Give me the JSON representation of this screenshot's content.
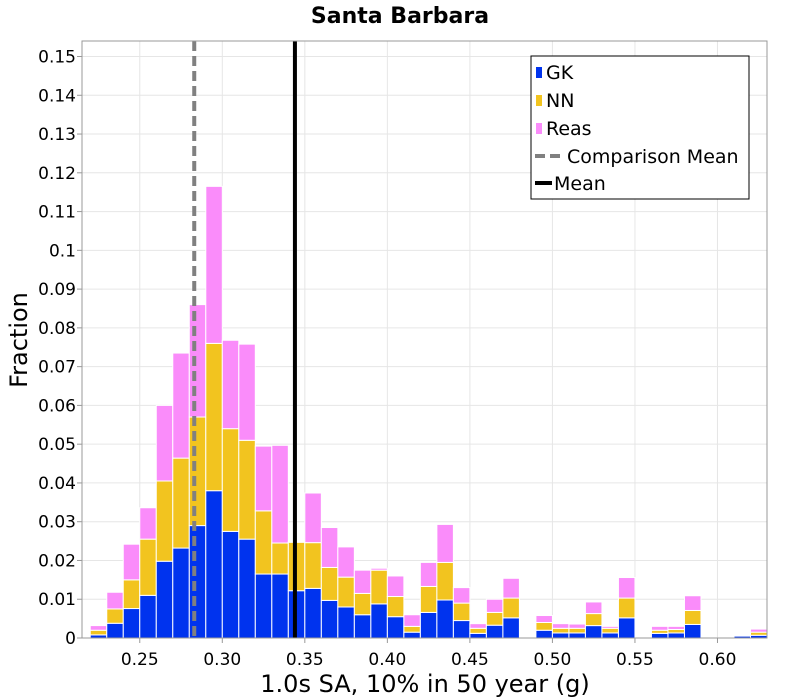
{
  "chart_data": {
    "type": "bar",
    "stacked": true,
    "title": "Santa Barbara",
    "xlabel": "1.0s SA, 10% in 50 year (g)",
    "ylabel": "Fraction",
    "xlim": [
      0.215,
      0.63
    ],
    "ylim": [
      0,
      0.154
    ],
    "bin_width": 0.01,
    "x_ticks": [
      0.25,
      0.3,
      0.35,
      0.4,
      0.45,
      0.5,
      0.55,
      0.6
    ],
    "x_tick_labels": [
      "0.25",
      "0.30",
      "0.35",
      "0.40",
      "0.45",
      "0.50",
      "0.55",
      "0.60"
    ],
    "y_ticks": [
      0,
      0.01,
      0.02,
      0.03,
      0.04,
      0.05,
      0.06,
      0.07,
      0.08,
      0.09,
      0.1,
      0.11,
      0.12,
      0.13,
      0.14,
      0.15
    ],
    "y_tick_labels": [
      "0",
      "0.01",
      "0.02",
      "0.03",
      "0.04",
      "0.05",
      "0.06",
      "0.07",
      "0.08",
      "0.09",
      "0.1",
      "0.11",
      "0.12",
      "0.13",
      "0.14",
      "0.15"
    ],
    "grid": true,
    "legend_position": "top-right",
    "x": [
      0.225,
      0.235,
      0.245,
      0.255,
      0.265,
      0.275,
      0.285,
      0.295,
      0.305,
      0.315,
      0.325,
      0.335,
      0.345,
      0.355,
      0.365,
      0.375,
      0.385,
      0.395,
      0.405,
      0.415,
      0.425,
      0.435,
      0.445,
      0.455,
      0.465,
      0.475,
      0.485,
      0.495,
      0.505,
      0.515,
      0.525,
      0.535,
      0.545,
      0.555,
      0.565,
      0.575,
      0.585,
      0.595,
      0.605,
      0.615,
      0.625
    ],
    "series": [
      {
        "name": "GK",
        "color": "#0033ee",
        "values": [
          0.0008,
          0.0038,
          0.0076,
          0.011,
          0.0198,
          0.0232,
          0.029,
          0.038,
          0.0275,
          0.0255,
          0.0165,
          0.0165,
          0.0122,
          0.0128,
          0.0097,
          0.008,
          0.006,
          0.0088,
          0.0055,
          0.0015,
          0.0066,
          0.0098,
          0.0045,
          0.0012,
          0.0033,
          0.0052,
          0,
          0.002,
          0.0013,
          0.0013,
          0.0032,
          0.0013,
          0.0052,
          0,
          0.0012,
          0.0013,
          0.0035,
          0,
          0,
          0.0005,
          0.0007
        ]
      },
      {
        "name": "NN",
        "color": "#f2c41f",
        "values": [
          0.0012,
          0.0037,
          0.0074,
          0.0145,
          0.0207,
          0.0232,
          0.028,
          0.038,
          0.0265,
          0.0255,
          0.0163,
          0.008,
          0.0125,
          0.0118,
          0.0085,
          0.0077,
          0.0055,
          0.0087,
          0.0052,
          0.0015,
          0.0067,
          0.0097,
          0.0045,
          0.0013,
          0.0033,
          0.0051,
          0,
          0.002,
          0.0012,
          0.0012,
          0.0031,
          0.0012,
          0.0051,
          0,
          0.0008,
          0.0009,
          0.0036,
          0,
          0,
          0.0001,
          0.0008
        ]
      },
      {
        "name": "Reas",
        "color": "#fa8cfa",
        "values": [
          0.0012,
          0.0043,
          0.0092,
          0.0081,
          0.0195,
          0.0271,
          0.029,
          0.0405,
          0.0228,
          0.0248,
          0.0167,
          0.0252,
          0.0001,
          0.0128,
          0.0103,
          0.0078,
          0.006,
          0.0005,
          0.0053,
          0.003,
          0.0062,
          0.0098,
          0.004,
          0.0012,
          0.0034,
          0.0051,
          0,
          0.0018,
          0.0012,
          0.0011,
          0.003,
          0.0005,
          0.0053,
          0,
          0.001,
          0.0008,
          0.0038,
          0,
          0,
          0.0001,
          0.0008
        ]
      }
    ],
    "reference_lines": [
      {
        "name": "Comparison Mean",
        "x": 0.283,
        "color": "#808080",
        "style": "dashed"
      },
      {
        "name": "Mean",
        "x": 0.344,
        "color": "#000000",
        "style": "solid"
      }
    ],
    "legend": [
      "GK",
      "NN",
      "Reas",
      "Comparison Mean",
      "Mean"
    ]
  }
}
